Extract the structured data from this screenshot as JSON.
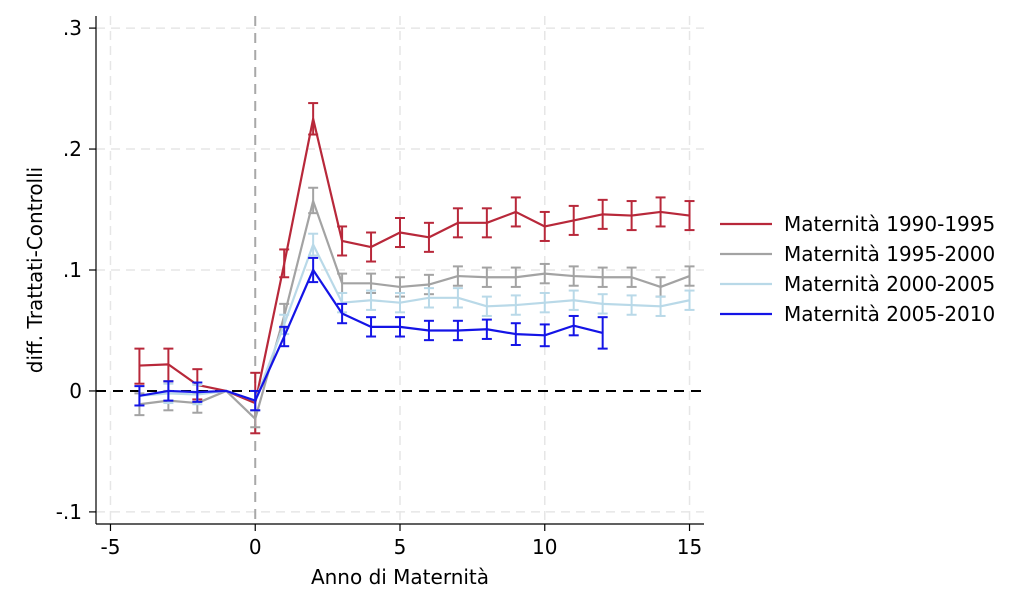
{
  "chart_data": {
    "type": "line",
    "xlabel": "Anno di Maternità",
    "ylabel": "diff. Trattati-Controlli",
    "xlim": [
      -5.5,
      15.5
    ],
    "ylim": [
      -0.11,
      0.31
    ],
    "xticks": [
      -5,
      0,
      5,
      10,
      15
    ],
    "xtick_labels": [
      "-5",
      "0",
      "5",
      "10",
      "15"
    ],
    "yticks": [
      -0.1,
      0,
      0.1,
      0.2,
      0.3
    ],
    "ytick_labels": [
      "-.1",
      "0",
      ".1",
      ".2",
      ".3"
    ],
    "grid": true,
    "legend_position": "right",
    "reference_lines": [
      {
        "axis": "y",
        "value": 0,
        "style": "dashed",
        "color": "#000000"
      },
      {
        "axis": "x",
        "value": 0,
        "style": "dashed",
        "color": "#a8a8a8"
      }
    ],
    "series": [
      {
        "name": "Maternità 1990-1995",
        "color": "#b8283a",
        "x": [
          -4,
          -3,
          -2,
          -1,
          0,
          1,
          2,
          3,
          4,
          5,
          6,
          7,
          8,
          9,
          10,
          11,
          12,
          13,
          14,
          15
        ],
        "y": [
          0.021,
          0.022,
          0.005,
          0.0,
          -0.01,
          0.105,
          0.225,
          0.124,
          0.119,
          0.131,
          0.127,
          0.139,
          0.139,
          0.148,
          0.136,
          0.141,
          0.146,
          0.145,
          0.148,
          0.145
        ],
        "ci_low": [
          0.006,
          0.008,
          -0.007,
          null,
          -0.035,
          0.094,
          0.212,
          0.112,
          0.107,
          0.119,
          0.115,
          0.127,
          0.127,
          0.136,
          0.124,
          0.129,
          0.134,
          0.133,
          0.136,
          0.133
        ],
        "ci_high": [
          0.035,
          0.035,
          0.018,
          null,
          0.015,
          0.117,
          0.238,
          0.136,
          0.131,
          0.143,
          0.139,
          0.151,
          0.151,
          0.16,
          0.148,
          0.153,
          0.158,
          0.157,
          0.16,
          0.157
        ]
      },
      {
        "name": "Maternità 1995-2000",
        "color": "#a3a3a3",
        "x": [
          -4,
          -3,
          -2,
          -1,
          0,
          1,
          2,
          3,
          4,
          5,
          6,
          7,
          8,
          9,
          10,
          11,
          12,
          13,
          14,
          15
        ],
        "y": [
          -0.011,
          -0.008,
          -0.01,
          0.0,
          -0.023,
          0.062,
          0.157,
          0.089,
          0.089,
          0.086,
          0.088,
          0.095,
          0.094,
          0.094,
          0.097,
          0.095,
          0.094,
          0.094,
          0.086,
          0.095
        ],
        "ci_low": [
          -0.02,
          -0.016,
          -0.018,
          null,
          -0.03,
          0.052,
          0.147,
          0.081,
          0.081,
          0.078,
          0.08,
          0.087,
          0.086,
          0.086,
          0.089,
          0.087,
          0.086,
          0.086,
          0.078,
          0.087
        ],
        "ci_high": [
          -0.002,
          0.0,
          -0.002,
          null,
          -0.016,
          0.072,
          0.168,
          0.097,
          0.097,
          0.094,
          0.096,
          0.103,
          0.102,
          0.102,
          0.105,
          0.103,
          0.102,
          0.102,
          0.094,
          0.103
        ]
      },
      {
        "name": "Maternità 2000-2005",
        "color": "#b9d9e8",
        "x": [
          -4,
          -3,
          -2,
          -1,
          0,
          1,
          2,
          3,
          4,
          5,
          6,
          7,
          8,
          9,
          10,
          11,
          12,
          13,
          14,
          15
        ],
        "y": [
          -0.004,
          -0.002,
          -0.003,
          0.0,
          -0.008,
          0.055,
          0.121,
          0.073,
          0.075,
          0.073,
          0.077,
          0.077,
          0.07,
          0.071,
          0.073,
          0.075,
          0.072,
          0.071,
          0.07,
          0.075
        ],
        "ci_low": [
          -0.012,
          -0.01,
          -0.011,
          null,
          -0.016,
          0.047,
          0.112,
          0.065,
          0.067,
          0.065,
          0.069,
          0.069,
          0.062,
          0.063,
          0.065,
          0.067,
          0.064,
          0.063,
          0.062,
          0.067
        ],
        "ci_high": [
          0.004,
          0.006,
          0.005,
          null,
          0.0,
          0.063,
          0.13,
          0.081,
          0.083,
          0.081,
          0.085,
          0.085,
          0.078,
          0.079,
          0.081,
          0.083,
          0.08,
          0.079,
          0.078,
          0.083
        ]
      },
      {
        "name": "Maternità 2005-2010",
        "color": "#1414e6",
        "x": [
          -4,
          -3,
          -2,
          -1,
          0,
          1,
          2,
          3,
          4,
          5,
          6,
          7,
          8,
          9,
          10,
          11,
          12
        ],
        "y": [
          -0.004,
          0.0,
          -0.001,
          0.0,
          -0.008,
          0.045,
          0.1,
          0.064,
          0.053,
          0.053,
          0.05,
          0.05,
          0.051,
          0.047,
          0.046,
          0.054,
          0.048
        ],
        "ci_low": [
          -0.012,
          -0.008,
          -0.009,
          null,
          -0.016,
          0.037,
          0.09,
          0.056,
          0.045,
          0.045,
          0.042,
          0.042,
          0.043,
          0.038,
          0.037,
          0.046,
          0.035
        ],
        "ci_high": [
          0.004,
          0.008,
          0.007,
          null,
          0.0,
          0.053,
          0.11,
          0.072,
          0.061,
          0.061,
          0.058,
          0.058,
          0.059,
          0.056,
          0.055,
          0.062,
          0.061
        ]
      }
    ]
  }
}
